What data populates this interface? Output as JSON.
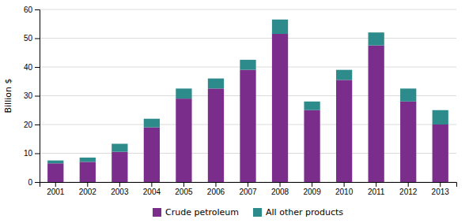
{
  "chart_data": {
    "type": "bar",
    "stacked": true,
    "categories": [
      "2001",
      "2002",
      "2003",
      "2004",
      "2005",
      "2006",
      "2007",
      "2008",
      "2009",
      "2010",
      "2011",
      "2012",
      "2013"
    ],
    "series": [
      {
        "name": "Crude petroleum",
        "color": "#7B2D8B",
        "values": [
          6.5,
          7.0,
          10.5,
          19.0,
          29.0,
          32.5,
          39.0,
          51.5,
          25.0,
          35.5,
          47.5,
          28.0,
          20.0
        ]
      },
      {
        "name": "All other products",
        "color": "#2E8B8B",
        "values": [
          1.0,
          1.5,
          2.8,
          3.0,
          3.5,
          3.5,
          3.5,
          5.0,
          3.0,
          3.5,
          4.5,
          4.5,
          5.0
        ]
      }
    ],
    "ylabel": "Billion $",
    "ylim": [
      0,
      60
    ],
    "yticks": [
      0,
      10,
      20,
      30,
      40,
      50,
      60
    ],
    "grid": true,
    "legend": "bottom"
  }
}
